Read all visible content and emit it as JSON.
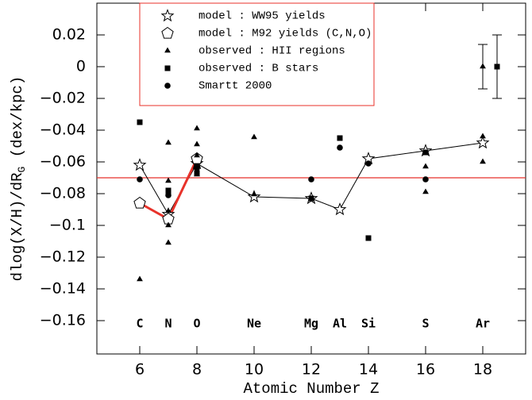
{
  "chart_data": {
    "type": "scatter",
    "x_label": "Atomic Number Z",
    "y_label": "dlog(X/H)/dR",
    "y_label_sub": "G",
    "y_label_tail": " (dex/kpc)",
    "xlim": [
      4.5,
      19.5
    ],
    "ylim": [
      -0.181,
      0.04
    ],
    "xticks": [
      6,
      8,
      10,
      12,
      14,
      16,
      18
    ],
    "yticks": [
      0.02,
      0,
      {
        "value": -0.02,
        "label": "−0.02"
      },
      {
        "value": -0.04,
        "label": "−0.04"
      },
      {
        "value": -0.06,
        "label": "−0.06"
      },
      {
        "value": -0.08,
        "label": "−0.08"
      },
      {
        "value": -0.1,
        "label": "−0.1"
      },
      {
        "value": -0.12,
        "label": "−0.12"
      },
      {
        "value": -0.14,
        "label": "−0.14"
      },
      {
        "value": -0.16,
        "label": "−0.16"
      }
    ],
    "hline": {
      "value": -0.07,
      "color": "#e8322a"
    },
    "series": [
      {
        "name": "model : WW95 yields",
        "marker": "star",
        "color": "#000000",
        "line": true,
        "line_color": "#000000",
        "x": [
          6,
          7,
          8,
          10,
          12,
          13,
          14,
          16,
          18
        ],
        "values": [
          -0.062,
          -0.093,
          -0.061,
          -0.082,
          -0.083,
          -0.09,
          -0.058,
          -0.053,
          -0.048
        ]
      },
      {
        "name": "model : M92 yields (C,N,O)",
        "marker": "pentagon",
        "color": "#000000",
        "line": true,
        "line_color": "#e8322a",
        "x": [
          6,
          7,
          8
        ],
        "values": [
          -0.086,
          -0.096,
          -0.058
        ]
      },
      {
        "name": "observed : HII regions",
        "marker": "triangle",
        "color": "#000000",
        "x": [
          6,
          7,
          7,
          7,
          7,
          7,
          8,
          8,
          8,
          8,
          10,
          10,
          16,
          16,
          18,
          18
        ],
        "values": [
          -0.134,
          -0.048,
          -0.072,
          -0.091,
          -0.1,
          -0.111,
          -0.039,
          -0.049,
          -0.056,
          -0.068,
          -0.0445,
          -0.0805,
          -0.063,
          -0.079,
          -0.044,
          -0.06
        ]
      },
      {
        "name": "observed : B stars",
        "marker": "square",
        "color": "#000000",
        "x": [
          6,
          7,
          7,
          8,
          8,
          12,
          13,
          14,
          16
        ],
        "values": [
          -0.035,
          -0.078,
          -0.08,
          -0.063,
          -0.067,
          -0.083,
          -0.045,
          -0.108,
          -0.054
        ]
      },
      {
        "name": "Smartt 2000",
        "marker": "circle",
        "color": "#000000",
        "x": [
          6,
          7,
          8,
          12,
          13,
          14,
          16
        ],
        "values": [
          -0.071,
          -0.081,
          -0.064,
          -0.071,
          -0.051,
          -0.061,
          -0.071
        ]
      }
    ],
    "error_bars": [
      {
        "marker": "triangle",
        "x": 18,
        "value": 0,
        "error": 0.014
      },
      {
        "marker": "square",
        "x": 18.5,
        "value": 0,
        "error": 0.02
      }
    ],
    "element_labels": {
      "x": [
        6,
        7,
        8,
        10,
        12,
        13,
        14,
        16,
        18
      ],
      "labels": [
        "C",
        "N",
        "O",
        "Ne",
        "Mg",
        "Al",
        "Si",
        "S",
        "Ar"
      ]
    },
    "legend_box_color": "#e8322a"
  }
}
